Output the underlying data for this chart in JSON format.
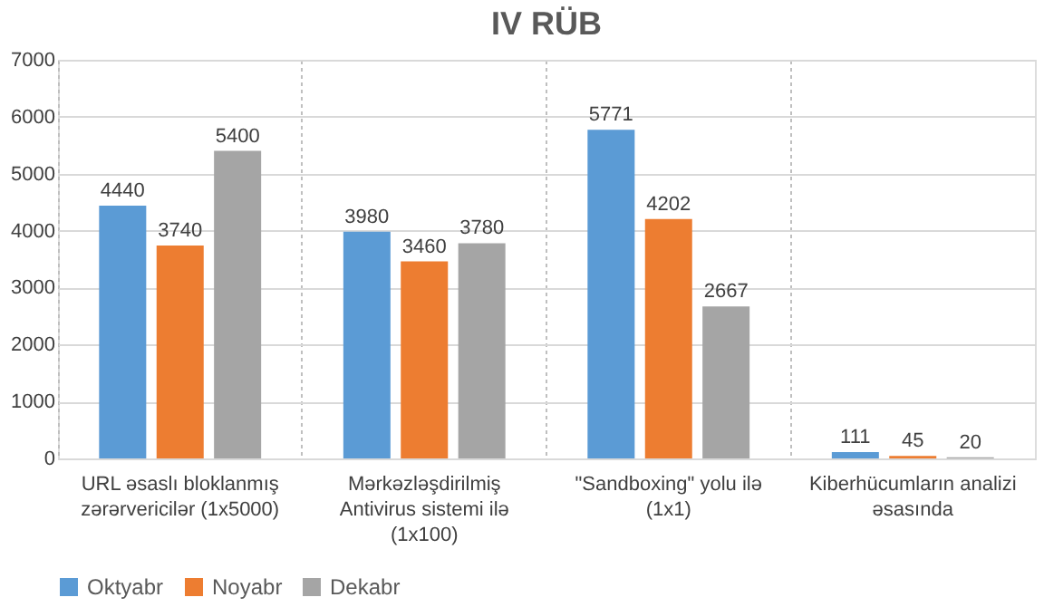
{
  "chart_data": {
    "type": "bar",
    "title": "IV RÜB",
    "categories": [
      "URL əsaslı bloklanmış zərərvericilər (1x5000)",
      "Mərkəzləşdirilmiş Antivirus sistemi ilə (1x100)",
      "\"Sandboxing\" yolu ilə (1x1)",
      "Kiberhücumların analizi əsasında"
    ],
    "series": [
      {
        "name": "Oktyabr",
        "color": "#5b9bd5",
        "values": [
          4440,
          3980,
          5771,
          111
        ]
      },
      {
        "name": "Noyabr",
        "color": "#ed7d31",
        "values": [
          3740,
          3460,
          4202,
          45
        ]
      },
      {
        "name": "Dekabr",
        "color": "#a5a5a5",
        "values": [
          5400,
          3780,
          2667,
          20
        ]
      }
    ],
    "ylim": [
      0,
      7000
    ],
    "yticks": [
      0,
      1000,
      2000,
      3000,
      4000,
      5000,
      6000,
      7000
    ],
    "grid": true,
    "legend": "bottom",
    "data_labels": true
  }
}
